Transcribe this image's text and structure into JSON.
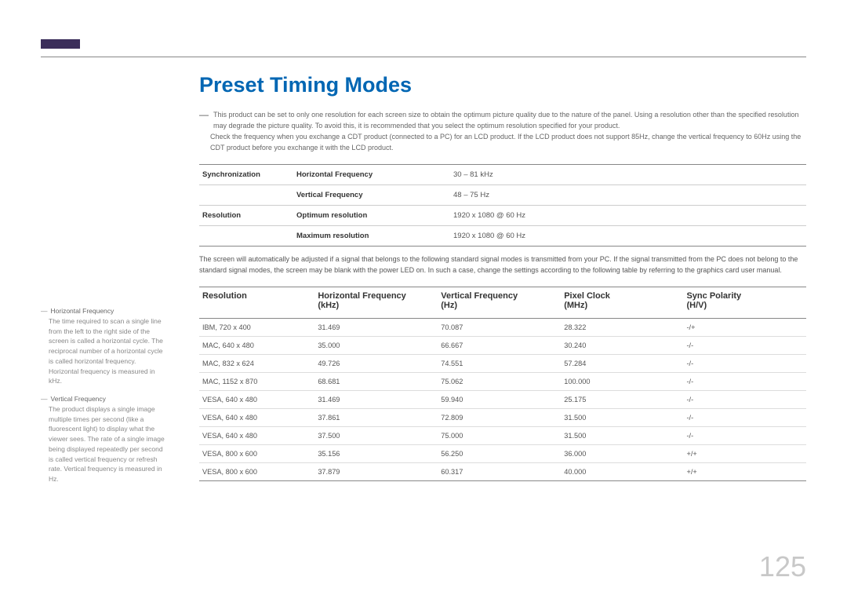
{
  "title": "Preset Timing Modes",
  "notes": [
    "This product can be set to only one resolution for each screen size to obtain the optimum picture quality due to the nature of the panel. Using a resolution other than the specified resolution may degrade the picture quality. To avoid this, it is recommended that you select the optimum resolution specified for your product.",
    "Check the frequency when you exchange a CDT product (connected to a PC) for an LCD product. If the LCD product does not support 85Hz, change the vertical frequency to 60Hz using the CDT product before you exchange it with the LCD product."
  ],
  "spec": {
    "rows": [
      {
        "c1": "Synchronization",
        "c2": "Horizontal Frequency",
        "c3": "30 – 81 kHz"
      },
      {
        "c1": "",
        "c2": "Vertical Frequency",
        "c3": "48 – 75 Hz"
      },
      {
        "c1": "Resolution",
        "c2": "Optimum resolution",
        "c3": "1920 x 1080 @ 60 Hz"
      },
      {
        "c1": "",
        "c2": "Maximum resolution",
        "c3": "1920 x 1080 @ 60 Hz"
      }
    ]
  },
  "paragraph": "The screen will automatically be adjusted if a signal that belongs to the following standard signal modes is transmitted from your PC. If the signal transmitted from the PC does not belong to the standard signal modes, the screen may be blank with the power LED on. In such a case, change the settings according to the following table by referring to the graphics card user manual.",
  "timing": {
    "headers": [
      "Resolution",
      "Horizontal Frequency\n(kHz)",
      "Vertical Frequency\n(Hz)",
      "Pixel Clock\n(MHz)",
      "Sync Polarity\n(H/V)"
    ],
    "rows": [
      [
        "IBM, 720 x 400",
        "31.469",
        "70.087",
        "28.322",
        "-/+"
      ],
      [
        "MAC, 640 x 480",
        "35.000",
        "66.667",
        "30.240",
        "-/-"
      ],
      [
        "MAC, 832 x 624",
        "49.726",
        "74.551",
        "57.284",
        "-/-"
      ],
      [
        "MAC, 1152 x 870",
        "68.681",
        "75.062",
        "100.000",
        "-/-"
      ],
      [
        "VESA, 640 x 480",
        "31.469",
        "59.940",
        "25.175",
        "-/-"
      ],
      [
        "VESA, 640 x 480",
        "37.861",
        "72.809",
        "31.500",
        "-/-"
      ],
      [
        "VESA, 640 x 480",
        "37.500",
        "75.000",
        "31.500",
        "-/-"
      ],
      [
        "VESA, 800 x 600",
        "35.156",
        "56.250",
        "36.000",
        "+/+"
      ],
      [
        "VESA, 800 x 600",
        "37.879",
        "60.317",
        "40.000",
        "+/+"
      ]
    ]
  },
  "sidebar": [
    {
      "title": "Horizontal Frequency",
      "body": "The time required to scan a single line from the left to the right side of the screen is called a horizontal cycle. The reciprocal number of a horizontal cycle is called horizontal frequency. Horizontal frequency is measured in kHz."
    },
    {
      "title": "Vertical Frequency",
      "body": "The product displays a single image multiple times per second (like a fluorescent light) to display what the viewer sees. The rate of a single image being displayed repeatedly per second is called vertical frequency or refresh rate. Vertical frequency is measured in Hz."
    }
  ],
  "page_number": "125",
  "colors": {
    "accent": "#0066b3",
    "tab": "#3b2e5a",
    "pagenum": "#c8c8c8"
  }
}
